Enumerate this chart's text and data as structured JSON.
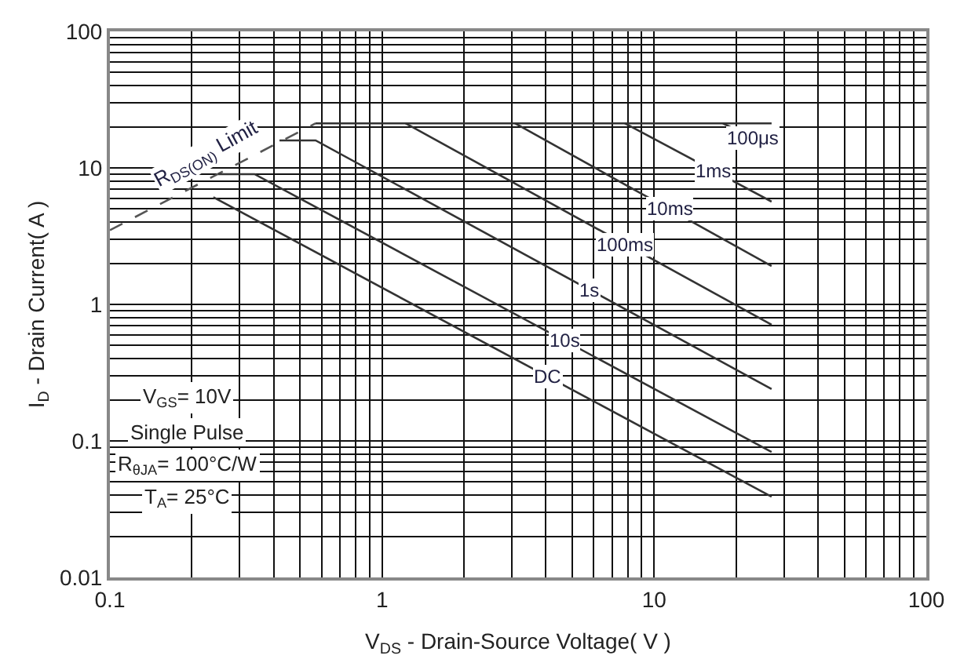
{
  "chart_data": {
    "type": "line",
    "xlabel": "V$_{DS}$ - Drain-Source Voltage( V )",
    "ylabel": "I$_{D}$ - Drain Current( A )",
    "log": "xy",
    "grid": true,
    "legend": false,
    "marker": "none",
    "xlim": [
      0.1,
      100
    ],
    "ylim": [
      0.01,
      100
    ],
    "xticks": [
      0.1,
      1,
      10,
      100
    ],
    "yticks": [
      0.01,
      0.1,
      1,
      10,
      100
    ],
    "series": [
      {
        "name": "R$_{DS(ON)}$ Limit",
        "color": "#555555",
        "line_style": "dashed",
        "x": [
          0.1,
          0.57
        ],
        "values": [
          3.5,
          21.2
        ]
      },
      {
        "color": "#333333",
        "line_style": "solid",
        "x": [
          0.57,
          27
        ],
        "values": [
          21.2,
          21.2
        ]
      },
      {
        "name": "100μs",
        "color": "#333333",
        "line_style": "solid",
        "x": [
          17.9,
          27
        ],
        "values": [
          21.2,
          14.0
        ]
      },
      {
        "name": "1ms",
        "color": "#333333",
        "line_style": "solid",
        "x": [
          7.8,
          27
        ],
        "values": [
          21.2,
          5.66
        ]
      },
      {
        "name": "10ms",
        "color": "#333333",
        "line_style": "solid",
        "x": [
          3.08,
          27
        ],
        "values": [
          21.2,
          1.91
        ]
      },
      {
        "name": "100ms",
        "color": "#333333",
        "line_style": "solid",
        "x": [
          1.22,
          27
        ],
        "values": [
          21.2,
          0.71
        ]
      },
      {
        "name": "1s",
        "color": "#333333",
        "line_style": "solid",
        "x": [
          0.42,
          0.57,
          27
        ],
        "values": [
          15.9,
          15.9,
          0.24
        ]
      },
      {
        "name": "10s",
        "color": "#333333",
        "line_style": "solid",
        "x": [
          0.25,
          0.34,
          27
        ],
        "values": [
          9.0,
          9.0,
          0.083
        ]
      },
      {
        "name": "DC",
        "color": "#333333",
        "line_style": "solid",
        "x": [
          0.24,
          27
        ],
        "values": [
          6.1,
          0.039
        ]
      }
    ],
    "annotations": [
      "V$_{GS}$= 10V",
      "Single Pulse",
      "R$_{θJA}$= 100°C/W",
      "T$_{A}$= 25°C"
    ]
  }
}
